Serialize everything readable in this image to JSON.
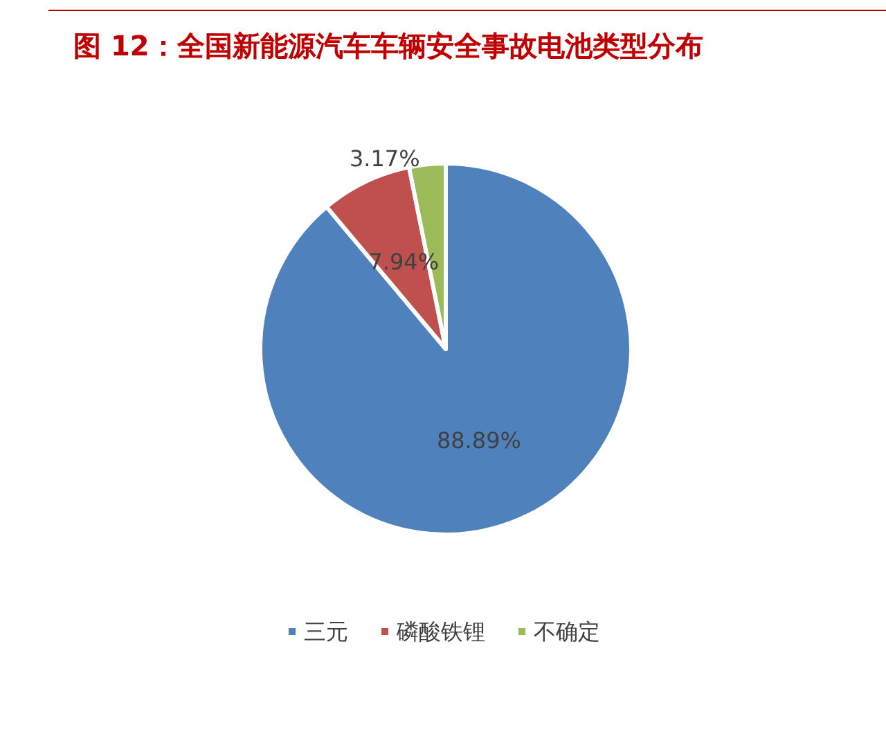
{
  "chart_data": {
    "type": "pie",
    "title": "图 12：全国新能源汽车车辆安全事故电池类型分布",
    "categories": [
      "三元",
      "磷酸铁锂",
      "不确定"
    ],
    "values": [
      88.89,
      7.94,
      3.17
    ],
    "colors": [
      "#4f81bd",
      "#c0504d",
      "#9bbb59"
    ],
    "value_labels": [
      "88.89%",
      "7.94%",
      "3.17%"
    ],
    "legend": "bottom"
  }
}
